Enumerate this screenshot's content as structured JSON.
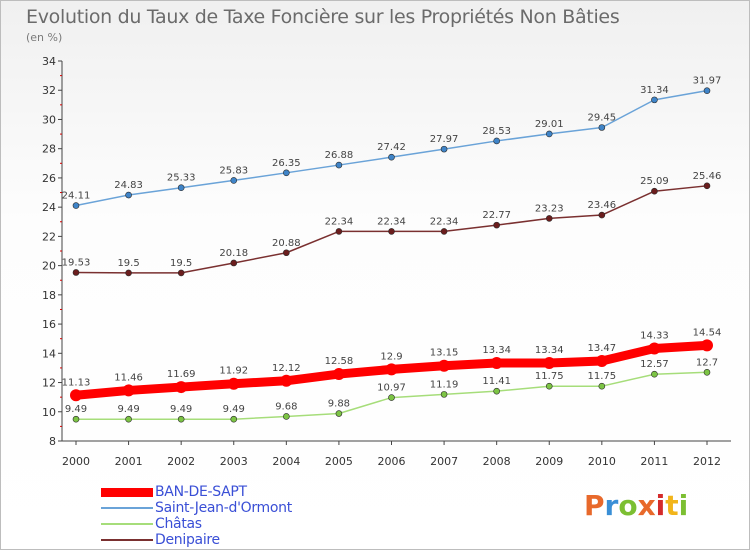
{
  "header": {
    "title": "Evolution du Taux de Taxe Foncière sur les Propriétés Non Bâties",
    "subtitle": "(en %)"
  },
  "logo": {
    "text": "Proxiti",
    "colors": [
      "#e8692b",
      "#3a8fd6",
      "#7cbf32",
      "#e8692b",
      "#d42b2b",
      "#f2b51b",
      "#7cbf32"
    ]
  },
  "chart_data": {
    "type": "line",
    "x": [
      "2000",
      "2001",
      "2002",
      "2003",
      "2004",
      "2005",
      "2006",
      "2007",
      "2008",
      "2009",
      "2010",
      "2011",
      "2012"
    ],
    "ylim": [
      8,
      34
    ],
    "yticks": [
      8,
      10,
      12,
      14,
      16,
      18,
      20,
      22,
      24,
      26,
      28,
      30,
      32,
      34
    ],
    "grid": false,
    "legend_position": "bottom-left",
    "series": [
      {
        "name": "Saint-Jean-d'Ormont",
        "color": "#6aa3d8",
        "marker": "#3f84c8",
        "width": 1.5,
        "values": [
          24.11,
          24.83,
          25.33,
          25.83,
          26.35,
          26.88,
          27.42,
          27.97,
          28.53,
          29.01,
          29.45,
          31.34,
          31.97
        ],
        "labels": [
          "24.11",
          "24.83",
          "25.33",
          "25.83",
          "26.35",
          "26.88",
          "27.42",
          "27.97",
          "28.53",
          "29.01",
          "29.45",
          "31.34",
          "31.97"
        ]
      },
      {
        "name": "Denipaire",
        "color": "#7a3030",
        "marker": "#6b1d1d",
        "width": 1.5,
        "values": [
          19.53,
          19.5,
          19.5,
          20.18,
          20.88,
          22.34,
          22.34,
          22.34,
          22.77,
          23.23,
          23.46,
          25.09,
          25.46
        ],
        "labels": [
          "19.53",
          "19.5",
          "19.5",
          "20.18",
          "20.88",
          "22.34",
          "22.34",
          "22.34",
          "22.77",
          "23.23",
          "23.46",
          "25.09",
          "25.46"
        ]
      },
      {
        "name": "BAN-DE-SAPT",
        "color": "#ff0000",
        "marker": "#ff0000",
        "width": 9,
        "values": [
          11.13,
          11.46,
          11.69,
          11.92,
          12.12,
          12.58,
          12.9,
          13.15,
          13.34,
          13.34,
          13.47,
          14.33,
          14.54
        ],
        "labels": [
          "11.13",
          "11.46",
          "11.69",
          "11.92",
          "12.12",
          "12.58",
          "12.9",
          "13.15",
          "13.34",
          "13.34",
          "13.47",
          "14.33",
          "14.54"
        ]
      },
      {
        "name": "Châtas",
        "color": "#a6dd7a",
        "marker": "#7cc444",
        "width": 1.5,
        "values": [
          9.49,
          9.49,
          9.49,
          9.49,
          9.68,
          9.88,
          10.97,
          11.19,
          11.41,
          11.75,
          11.75,
          12.57,
          12.7
        ],
        "labels": [
          "9.49",
          "9.49",
          "9.49",
          "9.49",
          "9.68",
          "9.88",
          "10.97",
          "11.19",
          "11.41",
          "11.75",
          "11.75",
          "12.57",
          "12.7"
        ]
      }
    ],
    "legend": [
      "BAN-DE-SAPT",
      "Saint-Jean-d'Ormont",
      "Châtas",
      "Denipaire"
    ]
  }
}
